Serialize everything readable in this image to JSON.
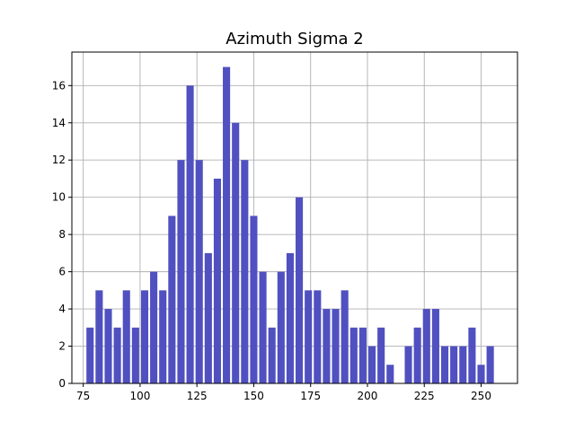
{
  "chart_data": {
    "type": "bar",
    "title": "Azimuth Sigma 2",
    "xlabel": "",
    "ylabel": "",
    "xlim": [
      70,
      266
    ],
    "ylim": [
      0,
      17.8
    ],
    "grid": true,
    "bar_color": "#5050c0",
    "bin_width": 4,
    "x_ticks": [
      75,
      100,
      125,
      150,
      175,
      200,
      225,
      250
    ],
    "x_tick_labels": [
      "75",
      "100",
      "125",
      "150",
      "175",
      "200",
      "225",
      "250"
    ],
    "y_ticks": [
      0,
      2,
      4,
      6,
      8,
      10,
      12,
      14,
      16
    ],
    "y_tick_labels": [
      "0",
      "2",
      "4",
      "6",
      "8",
      "10",
      "12",
      "14",
      "16"
    ],
    "x": [
      78,
      82,
      86,
      90,
      94,
      98,
      102,
      106,
      110,
      114,
      118,
      122,
      126,
      130,
      134,
      138,
      142,
      146,
      150,
      154,
      158,
      162,
      166,
      170,
      174,
      178,
      182,
      186,
      190,
      194,
      198,
      202,
      206,
      210,
      214,
      218,
      222,
      226,
      230,
      234,
      238,
      242,
      246,
      250,
      254
    ],
    "values": [
      3,
      5,
      4,
      3,
      5,
      3,
      5,
      6,
      5,
      9,
      12,
      16,
      12,
      7,
      11,
      17,
      14,
      12,
      9,
      6,
      3,
      6,
      7,
      10,
      5,
      5,
      4,
      4,
      5,
      3,
      3,
      2,
      3,
      1,
      0,
      2,
      3,
      4,
      4,
      2,
      2,
      2,
      3,
      1,
      2
    ]
  }
}
